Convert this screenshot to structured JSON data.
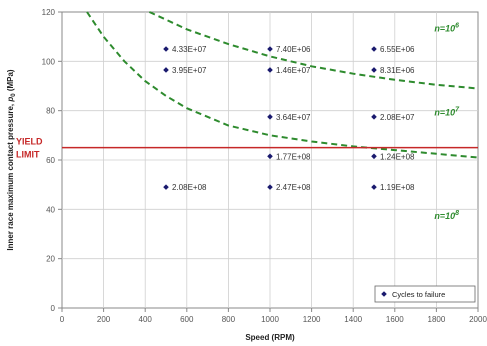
{
  "chart_data": {
    "type": "scatter",
    "xlabel": "Speed (RPM)",
    "ylabel_main": "Inner race maximum contact pressure, ",
    "ylabel_symbol": "p",
    "ylabel_sub": "0",
    "ylabel_unit": " (MPa)",
    "xlim": [
      0,
      2000
    ],
    "ylim": [
      0,
      120
    ],
    "xticks": [
      0,
      200,
      400,
      600,
      800,
      1000,
      1200,
      1400,
      1600,
      1800,
      2000
    ],
    "yticks": [
      0,
      20,
      40,
      60,
      80,
      100,
      120
    ],
    "grid": true,
    "legend_position": "bottom-right",
    "series": [
      {
        "name": "Cycles to failure",
        "color": "#1a1a6e",
        "marker": "diamond",
        "points": [
          {
            "x": 500,
            "y": 105,
            "label": "4.33E+07"
          },
          {
            "x": 500,
            "y": 96.5,
            "label": "3.95E+07"
          },
          {
            "x": 500,
            "y": 49,
            "label": "2.08E+08"
          },
          {
            "x": 1000,
            "y": 105,
            "label": "7.40E+06"
          },
          {
            "x": 1000,
            "y": 96.5,
            "label": "1.46E+07"
          },
          {
            "x": 1000,
            "y": 77.5,
            "label": "3.64E+07"
          },
          {
            "x": 1000,
            "y": 61.5,
            "label": "1.77E+08"
          },
          {
            "x": 1000,
            "y": 49,
            "label": "2.47E+08"
          },
          {
            "x": 1500,
            "y": 105,
            "label": "6.55E+06"
          },
          {
            "x": 1500,
            "y": 96.5,
            "label": "8.31E+06"
          },
          {
            "x": 1500,
            "y": 77.5,
            "label": "2.08E+07"
          },
          {
            "x": 1500,
            "y": 61.5,
            "label": "1.24E+08"
          },
          {
            "x": 1500,
            "y": 49,
            "label": "1.19E+08"
          }
        ]
      }
    ],
    "curves": [
      {
        "label_base": "n=10",
        "label_exp": "6",
        "color": "#2e8b2e",
        "style": "dashed",
        "points": [
          [
            420,
            120
          ],
          [
            600,
            113
          ],
          [
            800,
            107
          ],
          [
            1000,
            102
          ],
          [
            1200,
            98
          ],
          [
            1400,
            95
          ],
          [
            1600,
            92.5
          ],
          [
            1800,
            90.5
          ],
          [
            2000,
            89
          ]
        ]
      },
      {
        "label_base": "n=10",
        "label_exp": "7",
        "color": "#2e8b2e",
        "style": "dashed",
        "points": [
          [
            120,
            120
          ],
          [
            200,
            110
          ],
          [
            300,
            100
          ],
          [
            400,
            92
          ],
          [
            500,
            86
          ],
          [
            600,
            81
          ],
          [
            800,
            74
          ],
          [
            1000,
            70
          ],
          [
            1200,
            67.5
          ],
          [
            1400,
            65.5
          ],
          [
            1600,
            64
          ],
          [
            1800,
            62.5
          ],
          [
            2000,
            61
          ]
        ]
      }
    ],
    "curve_label_positions": [
      {
        "x": 1790,
        "y": 112
      },
      {
        "x": 1790,
        "y": 78
      },
      {
        "x": 1790,
        "y": 36
      }
    ],
    "extra_curve_label": {
      "label_base": "n=10",
      "label_exp": "8"
    },
    "reference_line": {
      "y": 65,
      "color": "#c62828",
      "label_line1": "YIELD",
      "label_line2": "LIMIT"
    }
  }
}
